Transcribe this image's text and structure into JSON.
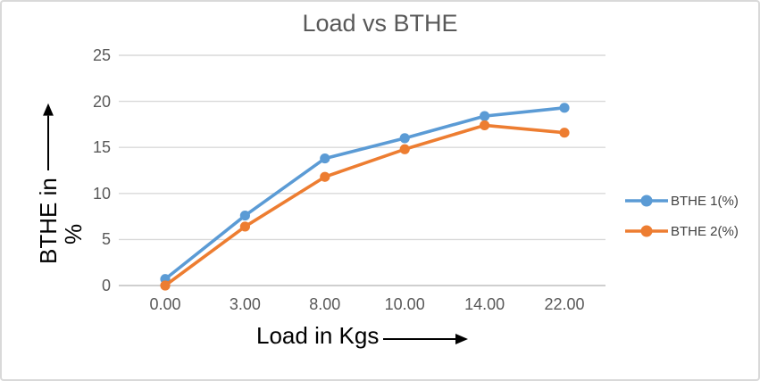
{
  "chart_data": {
    "type": "line",
    "title": "Load vs BTHE",
    "xlabel": "Load in Kgs",
    "ylabel": "BTHE in %",
    "ylabel_lines": [
      "BTHE in",
      "%"
    ],
    "categories": [
      "0.00",
      "3.00",
      "8.00",
      "10.00",
      "14.00",
      "22.00"
    ],
    "series": [
      {
        "name": "BTHE 1(%)",
        "color": "#5B9BD5",
        "values": [
          0.7,
          7.6,
          13.8,
          16.0,
          18.4,
          19.3
        ]
      },
      {
        "name": "BTHE 2(%)",
        "color": "#ED7D31",
        "values": [
          0.0,
          6.4,
          11.8,
          14.8,
          17.4,
          16.6
        ]
      }
    ],
    "y_ticks": [
      25,
      20,
      15,
      10,
      5,
      0
    ],
    "ylim": [
      0,
      25
    ],
    "grid": true,
    "legend_position": "right",
    "colors": {
      "gridline": "#D9D9D9",
      "axis_line": "#BFBFBF",
      "tick_text": "#595959",
      "title_text": "#595959",
      "axis_title_text": "#000000",
      "legend_text": "#404040",
      "background": "#FFFFFF",
      "border": "#D9D9D9"
    }
  }
}
